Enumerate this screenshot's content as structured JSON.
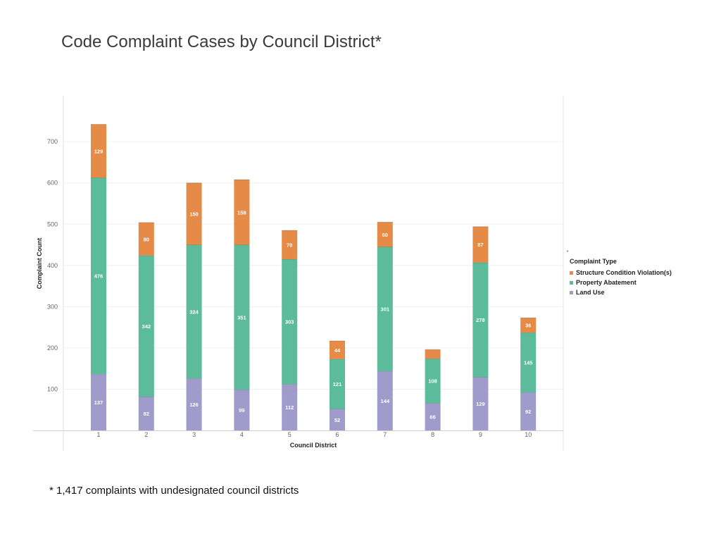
{
  "title": "Code Complaint Cases by Council District*",
  "footnote": "* 1,417 complaints with undesignated council districts",
  "legend": {
    "title": "Complaint Type",
    "items": [
      {
        "label": "Structure Condition Violation(s)",
        "color": "#e58b47"
      },
      {
        "label": "Property Abatement",
        "color": "#5cbb9b"
      },
      {
        "label": "Land Use",
        "color": "#9f9ccc"
      }
    ]
  },
  "chart_data": {
    "type": "bar",
    "stacked": true,
    "categories": [
      "1",
      "2",
      "3",
      "4",
      "5",
      "6",
      "7",
      "8",
      "9",
      "10"
    ],
    "series": [
      {
        "name": "Land Use",
        "color": "#9f9ccc",
        "values": [
          137,
          82,
          126,
          99,
          112,
          52,
          144,
          66,
          129,
          92
        ],
        "labels": [
          "137",
          "82",
          "126",
          "99",
          "112",
          "52",
          "144",
          "66",
          "129",
          "92"
        ]
      },
      {
        "name": "Property Abatement",
        "color": "#5cbb9b",
        "values": [
          476,
          342,
          324,
          351,
          303,
          121,
          301,
          108,
          278,
          145
        ],
        "labels": [
          "476",
          "342",
          "324",
          "351",
          "303",
          "121",
          "301",
          "108",
          "278",
          "145"
        ]
      },
      {
        "name": "Structure Condition Violation(s)",
        "color": "#e58b47",
        "values": [
          129,
          80,
          150,
          158,
          70,
          44,
          60,
          22,
          87,
          36
        ],
        "labels": [
          "129",
          "80",
          "150",
          "158",
          "70",
          "44",
          "60",
          "",
          "87",
          "36"
        ]
      }
    ],
    "xlabel": "Council District",
    "ylabel": "Complaint Count",
    "ylim": [
      0,
      800
    ],
    "yticks": [
      100,
      200,
      300,
      400,
      500,
      600,
      700
    ],
    "grid": true,
    "legend_position": "right"
  }
}
